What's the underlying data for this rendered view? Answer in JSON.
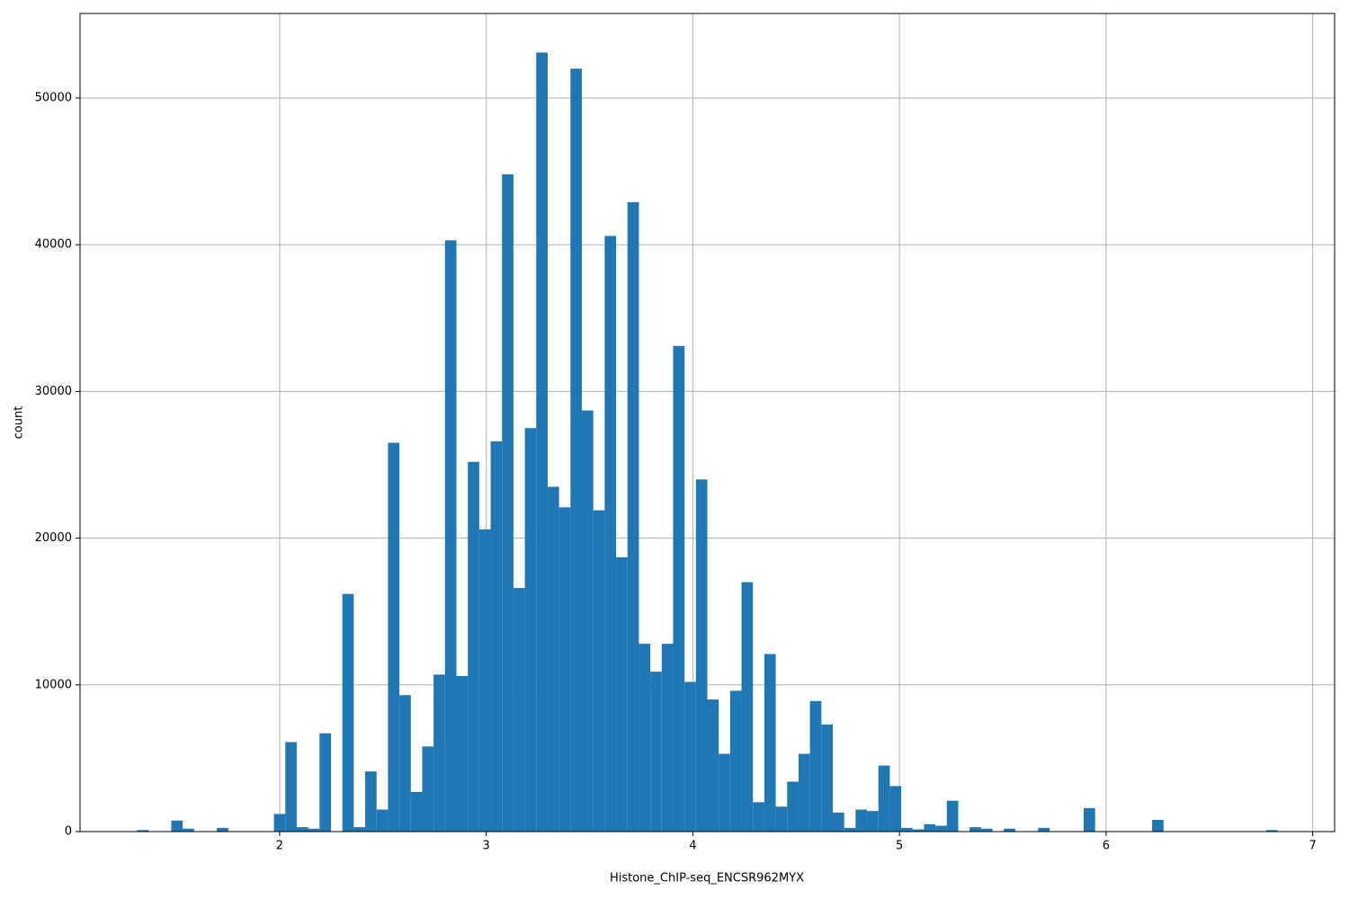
{
  "chart_data": {
    "type": "histogram",
    "xlabel": "Histone_ChIP-seq_ENCSR962MYX",
    "ylabel": "count",
    "color": "#1f77b4",
    "grid": true,
    "bins": [
      1.31,
      1.3652,
      1.4204,
      1.4756,
      1.5308,
      1.586,
      1.6412,
      1.6964,
      1.7516,
      1.8068,
      1.862,
      1.9172,
      1.9724,
      2.0276,
      2.0828,
      2.138,
      2.1932,
      2.2484,
      2.3036,
      2.3588,
      2.414,
      2.4692,
      2.5244,
      2.5796,
      2.6348,
      2.69,
      2.7452,
      2.8004,
      2.8556,
      2.9108,
      2.966,
      3.0212,
      3.0764,
      3.1316,
      3.1868,
      3.242,
      3.2972,
      3.3524,
      3.4076,
      3.4628,
      3.518,
      3.5732,
      3.6284,
      3.6836,
      3.7388,
      3.794,
      3.8492,
      3.9044,
      3.9596,
      4.0148,
      4.07,
      4.1252,
      4.1804,
      4.2356,
      4.2908,
      4.346,
      4.4012,
      4.4564,
      4.5116,
      4.5668,
      4.622,
      4.6772,
      4.7324,
      4.7876,
      4.8428,
      4.898,
      4.9532,
      5.0084,
      5.0636,
      5.1188,
      5.174,
      5.2292,
      5.2844,
      5.3396,
      5.3948,
      5.45,
      5.5052,
      5.5604,
      5.6156,
      5.6708,
      5.726,
      5.7812,
      5.8364,
      5.8916,
      5.9468,
      6.002,
      6.0572,
      6.1124,
      6.1676,
      6.2228,
      6.278,
      6.3332,
      6.3884,
      6.4436,
      6.4988,
      6.554,
      6.6092,
      6.6644,
      6.7196,
      6.7748,
      6.83
    ],
    "values": [
      100,
      0,
      0,
      750,
      200,
      0,
      0,
      250,
      0,
      0,
      0,
      0,
      1200,
      6100,
      300,
      200,
      6700,
      0,
      16200,
      300,
      4100,
      1500,
      26500,
      9300,
      2700,
      5800,
      10700,
      40300,
      10600,
      25200,
      20600,
      26600,
      44800,
      16600,
      27500,
      53100,
      23500,
      22100,
      52000,
      28700,
      21900,
      40600,
      18700,
      42900,
      12800,
      10900,
      12800,
      33100,
      10200,
      24000,
      9000,
      5300,
      9600,
      17000,
      2000,
      12100,
      1700,
      3400,
      5300,
      8900,
      7300,
      1300,
      250,
      1500,
      1400,
      4500,
      3100,
      250,
      150,
      500,
      400,
      2100,
      0,
      300,
      200,
      0,
      200,
      0,
      0,
      250,
      0,
      0,
      0,
      1600,
      0,
      0,
      0,
      0,
      0,
      800,
      0,
      0,
      0,
      0,
      0,
      0,
      0,
      0,
      0,
      100
    ],
    "xlim": [
      1.034,
      7.106
    ],
    "ylim": [
      0,
      55760
    ],
    "xticks": [
      2,
      3,
      4,
      5,
      6,
      7
    ],
    "yticks": [
      0,
      10000,
      20000,
      30000,
      40000,
      50000
    ]
  }
}
